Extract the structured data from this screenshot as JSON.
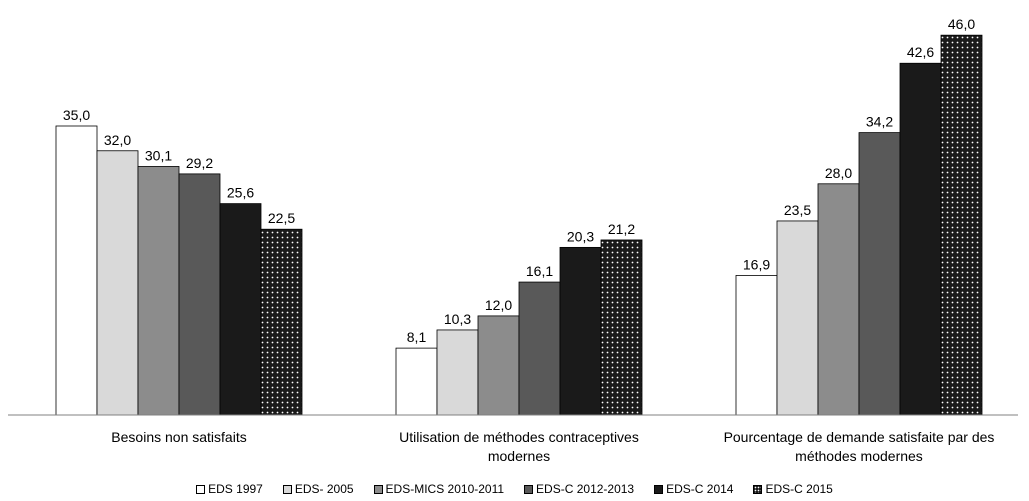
{
  "chart_data": {
    "type": "bar",
    "categories": [
      "Besoins non satisfaits",
      "Utilisation de méthodes contraceptives modernes",
      "Pourcentage de demande satisfaite par des méthodes modernes"
    ],
    "category_lines": [
      [
        "Besoins non satisfaits"
      ],
      [
        "Utilisation de méthodes contraceptives",
        "modernes"
      ],
      [
        "Pourcentage de demande satisfaite par des",
        "méthodes modernes"
      ]
    ],
    "series": [
      {
        "name": "EDS 1997",
        "values": [
          35.0,
          8.1,
          16.9
        ],
        "labels": [
          "35,0",
          "8,1",
          "16,9"
        ],
        "fill": "#ffffff",
        "pattern": "none"
      },
      {
        "name": "EDS- 2005",
        "values": [
          32.0,
          10.3,
          23.5
        ],
        "labels": [
          "32,0",
          "10,3",
          "23,5"
        ],
        "fill": "#d9d9d9",
        "pattern": "none"
      },
      {
        "name": "EDS-MICS 2010-2011",
        "values": [
          30.1,
          12.0,
          28.0
        ],
        "labels": [
          "30,1",
          "12,0",
          "28,0"
        ],
        "fill": "#8c8c8c",
        "pattern": "none"
      },
      {
        "name": "EDS-C 2012-2013",
        "values": [
          29.2,
          16.1,
          34.2
        ],
        "labels": [
          "29,2",
          "16,1",
          "34,2"
        ],
        "fill": "#595959",
        "pattern": "none"
      },
      {
        "name": "EDS-C 2014",
        "values": [
          25.6,
          20.3,
          42.6
        ],
        "labels": [
          "25,6",
          "20,3",
          "42,6"
        ],
        "fill": "#1a1a1a",
        "pattern": "none"
      },
      {
        "name": "EDS-C 2015",
        "values": [
          22.5,
          21.2,
          46.0
        ],
        "labels": [
          "22,5",
          "21,2",
          "46,0"
        ],
        "fill": "#1a1a1a",
        "pattern": "dots"
      }
    ],
    "ylim": [
      0,
      48
    ],
    "grid": false,
    "legend_position": "bottom"
  }
}
